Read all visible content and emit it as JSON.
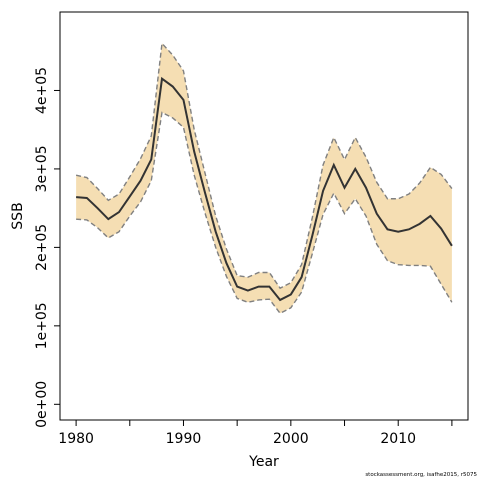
{
  "chart_data": {
    "type": "line",
    "xlabel": "Year",
    "ylabel": "SSB",
    "xlim": [
      1978.5,
      2016.5
    ],
    "ylim": [
      -20000,
      500000
    ],
    "xticks": [
      1980,
      1990,
      2000,
      2010
    ],
    "xtick_labels": [
      "1980",
      "1990",
      "2000",
      "2010"
    ],
    "xminor_ticks": [
      1985,
      1995,
      2005,
      2015
    ],
    "yticks": [
      0,
      100000,
      200000,
      300000,
      400000
    ],
    "ytick_labels": [
      "0e+00",
      "1e+05",
      "2e+05",
      "3e+05",
      "4e+05"
    ],
    "grid": false,
    "colors": {
      "band": "#f5deb3",
      "line": "#333333",
      "bound": "#808080"
    },
    "x": [
      1980,
      1981,
      1982,
      1983,
      1984,
      1985,
      1986,
      1987,
      1988,
      1989,
      1990,
      1991,
      1992,
      1993,
      1994,
      1995,
      1996,
      1997,
      1998,
      1999,
      2000,
      2001,
      2002,
      2003,
      2004,
      2005,
      2006,
      2007,
      2008,
      2009,
      2010,
      2011,
      2012,
      2013,
      2014,
      2015
    ],
    "series": [
      {
        "values": [
          264000,
          263000,
          250000,
          236000,
          245000,
          265000,
          285000,
          312000,
          415000,
          405000,
          388000,
          322000,
          270000,
          220000,
          180000,
          150000,
          145000,
          150000,
          150000,
          133000,
          140000,
          162000,
          215000,
          272000,
          305000,
          276000,
          300000,
          276000,
          243000,
          223000,
          220000,
          223000,
          230000,
          240000,
          224000,
          202000
        ]
      },
      {
        "values": [
          292000,
          289000,
          275000,
          260000,
          268000,
          290000,
          313000,
          342000,
          460000,
          445000,
          425000,
          350000,
          295000,
          240000,
          198000,
          164000,
          162000,
          168000,
          168000,
          148000,
          155000,
          178000,
          238000,
          305000,
          340000,
          312000,
          340000,
          315000,
          283000,
          262000,
          262000,
          268000,
          282000,
          302000,
          293000,
          275000
        ]
      },
      {
        "values": [
          236000,
          235000,
          225000,
          212000,
          220000,
          240000,
          258000,
          285000,
          372000,
          365000,
          353000,
          292000,
          244000,
          200000,
          163000,
          135000,
          130000,
          133000,
          134000,
          116000,
          123000,
          143000,
          192000,
          242000,
          269000,
          243000,
          262000,
          240000,
          204000,
          183000,
          178000,
          177000,
          177000,
          176000,
          153000,
          130000
        ]
      }
    ]
  },
  "footer": {
    "credit": "stockassessment.org, isafhe2015, r5075"
  }
}
